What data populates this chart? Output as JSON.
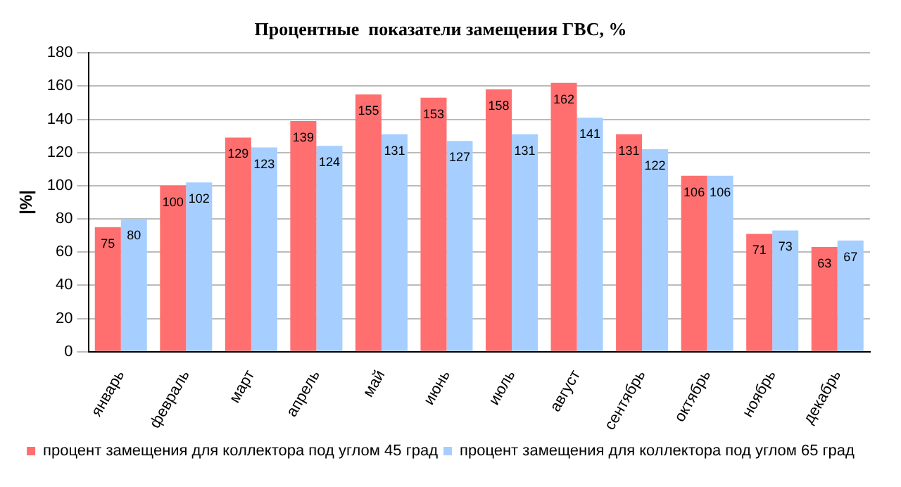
{
  "chart_data": {
    "type": "bar",
    "title": "Процентные  показатели замещения ГВС, %",
    "ylabel": "|%|",
    "categories": [
      "январь",
      "февраль",
      "март",
      "апрель",
      "май",
      "июнь",
      "июль",
      "август",
      "сентябрь",
      "октябрь",
      "ноябрь",
      "декабрь"
    ],
    "series": [
      {
        "name": "процент замещения для коллектора под углом 45 град",
        "color": "#ff6f6f",
        "values": [
          75,
          100,
          129,
          139,
          155,
          153,
          158,
          162,
          131,
          106,
          71,
          63
        ]
      },
      {
        "name": "процент замещения для коллектора под углом 65 град",
        "color": "#a6cfff",
        "values": [
          80,
          102,
          123,
          124,
          131,
          127,
          131,
          141,
          122,
          106,
          73,
          67
        ]
      }
    ],
    "ylim": [
      0,
      180
    ],
    "yticks": [
      0,
      20,
      40,
      60,
      80,
      100,
      120,
      140,
      160,
      180
    ],
    "grid": "y",
    "legend": "bottom",
    "data_labels": true
  }
}
